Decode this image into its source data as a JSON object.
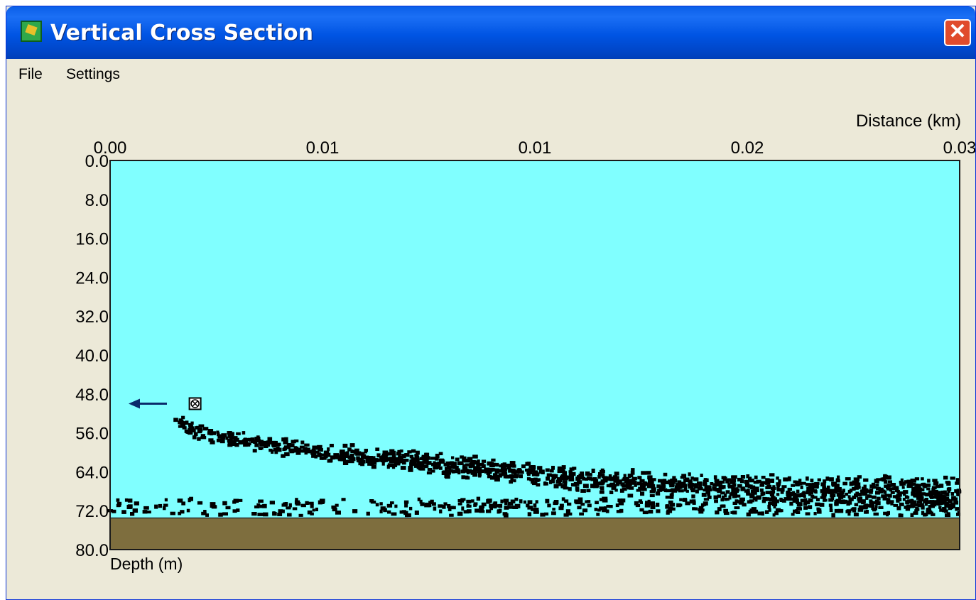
{
  "window": {
    "title": "Vertical Cross Section",
    "close_glyph": "✕",
    "app_icon": "chart-app-icon"
  },
  "menu": {
    "file": "File",
    "settings": "Settings"
  },
  "colors": {
    "water": "#80ffff",
    "seabed": "#7e6e3e",
    "particles": "#000000",
    "arrow": "#0a2a6a"
  },
  "chart_data": {
    "type": "scatter",
    "xlabel": "Distance (km)",
    "ylabel": "Depth (m)",
    "x_ticks": [
      "0.00",
      "0.01",
      "0.01",
      "0.02",
      "0.03"
    ],
    "y_ticks": [
      "0.0",
      "8.0",
      "16.0",
      "24.0",
      "32.0",
      "40.0",
      "48.0",
      "56.0",
      "64.0",
      "72.0",
      "80.0"
    ],
    "xlim": [
      0,
      0.03
    ],
    "ylim": [
      0,
      80
    ],
    "y_inverted": true,
    "seabed_depth": 73.5,
    "source_marker": {
      "x": 0.003,
      "y": 50
    },
    "plume_centerline": [
      {
        "x": 0.0023,
        "y": 53.5
      },
      {
        "x": 0.003,
        "y": 55.5
      },
      {
        "x": 0.005,
        "y": 58
      },
      {
        "x": 0.0075,
        "y": 60
      },
      {
        "x": 0.01,
        "y": 61.5
      },
      {
        "x": 0.0125,
        "y": 63
      },
      {
        "x": 0.015,
        "y": 64.5
      },
      {
        "x": 0.0175,
        "y": 66
      },
      {
        "x": 0.02,
        "y": 67
      },
      {
        "x": 0.0225,
        "y": 67.5
      },
      {
        "x": 0.025,
        "y": 68
      },
      {
        "x": 0.0275,
        "y": 68
      },
      {
        "x": 0.03,
        "y": 68.5
      }
    ],
    "bottom_band": {
      "x_range": [
        0,
        0.03
      ],
      "y_range": [
        69.5,
        73
      ]
    },
    "series": [
      {
        "values": "particle positions (scatter)"
      }
    ]
  }
}
